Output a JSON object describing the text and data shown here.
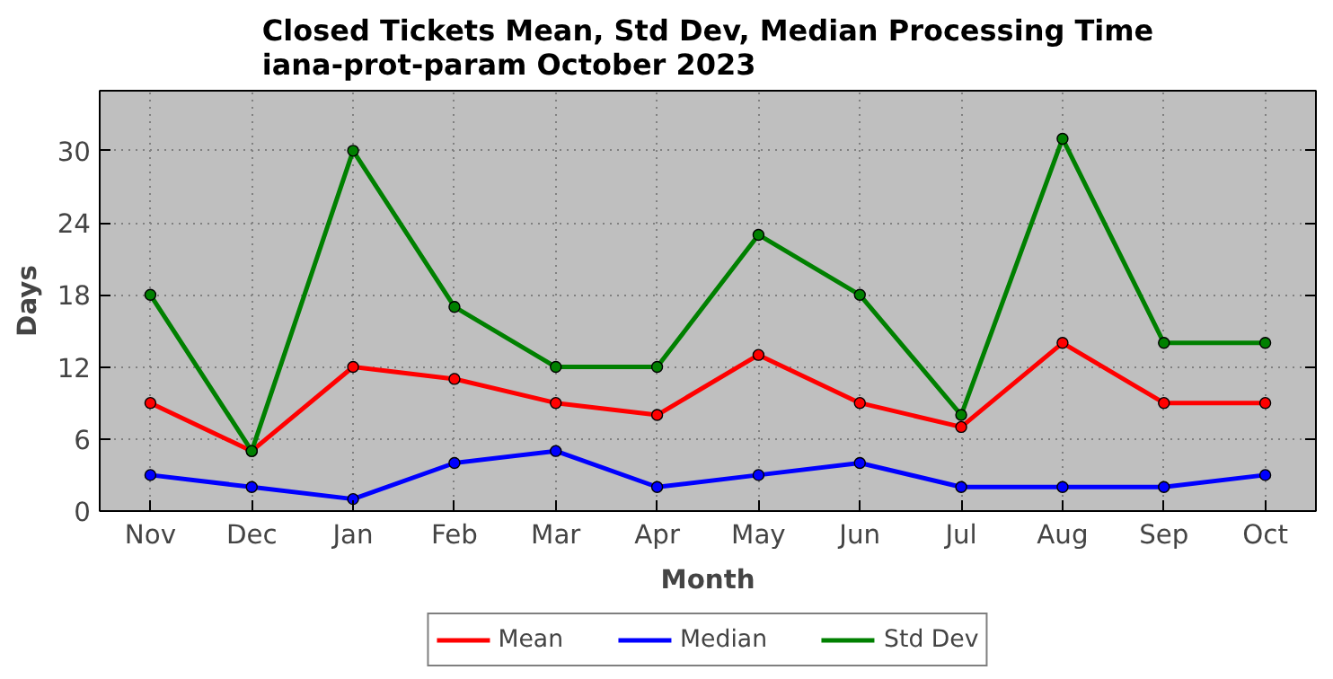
{
  "chart_data": {
    "type": "line",
    "title": "Closed Tickets Mean, Std Dev, Median Processing Time\niana-prot-param October 2023",
    "xlabel": "Month",
    "ylabel": "Days",
    "categories": [
      "Nov",
      "Dec",
      "Jan",
      "Feb",
      "Mar",
      "Apr",
      "May",
      "Jun",
      "Jul",
      "Aug",
      "Sep",
      "Oct"
    ],
    "series": [
      {
        "name": "Mean",
        "color": "#ff0000",
        "values": [
          9,
          5,
          12,
          11,
          9,
          8,
          13,
          9,
          7,
          14,
          9,
          9
        ]
      },
      {
        "name": "Median",
        "color": "#0000ff",
        "values": [
          3,
          2,
          1,
          4,
          5,
          2,
          3,
          4,
          2,
          2,
          2,
          3
        ]
      },
      {
        "name": "Std Dev",
        "color": "#008000",
        "values": [
          18,
          5,
          30,
          17,
          12,
          12,
          23,
          18,
          8,
          31,
          14,
          14
        ]
      }
    ],
    "ylim": [
      0,
      35
    ],
    "yticks": [
      0,
      6,
      12,
      18,
      24,
      30
    ],
    "grid": true,
    "legend": "bottom",
    "marker": "circle",
    "line_style": "solid"
  }
}
